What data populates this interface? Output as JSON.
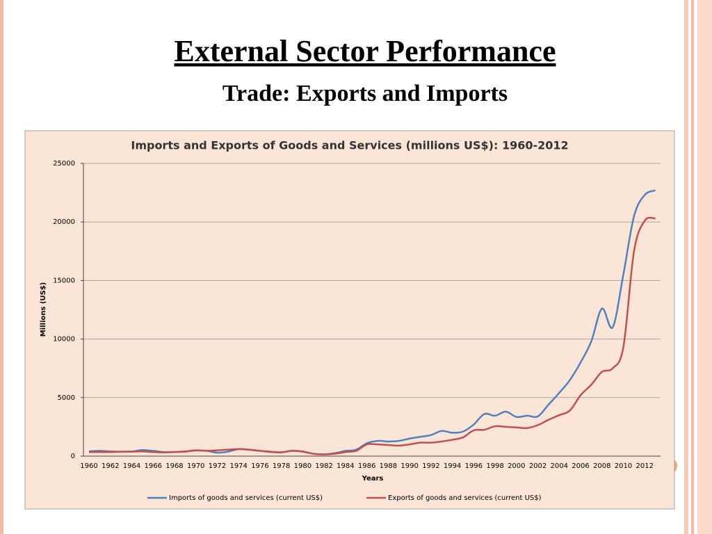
{
  "slide": {
    "title": "External Sector Performance",
    "subtitle": "Trade: Exports and Imports"
  },
  "chart_data": {
    "type": "line",
    "title": "Imports and Exports of Goods and Services (millions US$): 1960-2012",
    "xlabel": "Years",
    "ylabel": "Millions (US$)",
    "categories": [
      "1960",
      null,
      "1962",
      null,
      "1964",
      null,
      "1966",
      null,
      "1968",
      null,
      "1970",
      null,
      "1972",
      null,
      "1974",
      null,
      "1976",
      null,
      "1978",
      null,
      "1980",
      null,
      "1982",
      null,
      "1984",
      null,
      "1986",
      null,
      "1988",
      null,
      "1990",
      null,
      "1992",
      null,
      "1994",
      null,
      "1996",
      null,
      "1998",
      null,
      "2000",
      null,
      "2002",
      null,
      "2004",
      null,
      "2006",
      null,
      "2008",
      null,
      "2010",
      null,
      "2012",
      null
    ],
    "series": [
      {
        "name": "Imports of goods and services (current US$)",
        "color": "#4f81bd",
        "values": [
          400,
          450,
          400,
          380,
          400,
          520,
          450,
          350,
          350,
          380,
          480,
          450,
          300,
          380,
          600,
          550,
          450,
          350,
          320,
          450,
          400,
          200,
          150,
          250,
          450,
          550,
          1100,
          1300,
          1250,
          1300,
          1500,
          1650,
          1800,
          2150,
          2000,
          2100,
          2700,
          3600,
          3450,
          3800,
          3350,
          3450,
          3400,
          4400,
          5400,
          6500,
          8000,
          9800,
          12600,
          11000,
          15500,
          20500,
          22300,
          22700
        ]
      },
      {
        "name": "Exports of goods and services (current US$)",
        "color": "#c0504d",
        "values": [
          350,
          350,
          350,
          380,
          380,
          400,
          350,
          320,
          350,
          400,
          500,
          450,
          500,
          550,
          600,
          550,
          450,
          380,
          330,
          450,
          380,
          200,
          150,
          200,
          350,
          450,
          1000,
          1000,
          950,
          900,
          1000,
          1150,
          1150,
          1250,
          1400,
          1600,
          2200,
          2250,
          2550,
          2500,
          2450,
          2400,
          2650,
          3100,
          3500,
          3900,
          5200,
          6100,
          7200,
          7500,
          9300,
          17500,
          20100,
          20300
        ]
      }
    ],
    "ylim": [
      0,
      25000
    ],
    "yticks": [
      0,
      5000,
      10000,
      15000,
      20000,
      25000
    ],
    "grid": true,
    "legend": "bottom"
  }
}
